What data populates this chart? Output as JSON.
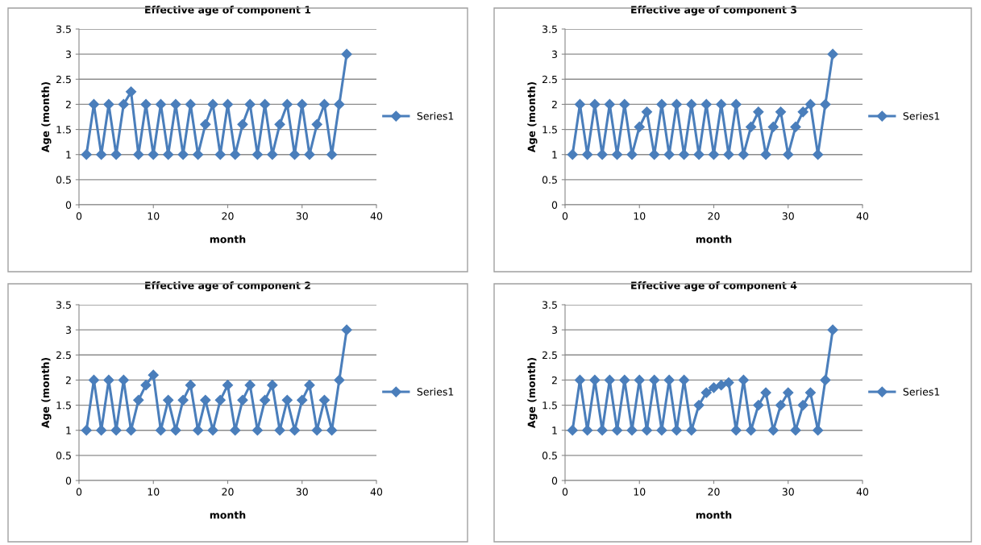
{
  "chart_data": [
    {
      "type": "line",
      "title": "Effective age of component 1",
      "xlabel": "month",
      "ylabel": "Age (month)",
      "xlim": [
        0,
        40
      ],
      "xticks": [
        0,
        10,
        20,
        30,
        40
      ],
      "ylim": [
        0,
        3.5
      ],
      "yticks": [
        0,
        0.5,
        1,
        1.5,
        2,
        2.5,
        3,
        3.5
      ],
      "grid": "y",
      "legend": "right",
      "marker": "diamond",
      "x": [
        1,
        2,
        3,
        4,
        5,
        6,
        7,
        8,
        9,
        10,
        11,
        12,
        13,
        14,
        15,
        16,
        17,
        18,
        19,
        20,
        21,
        22,
        23,
        24,
        25,
        26,
        27,
        28,
        29,
        30,
        31,
        32,
        33,
        34,
        35,
        36
      ],
      "series": [
        {
          "name": "Series1",
          "color": "#4a7ebb",
          "values": [
            1,
            2,
            1,
            2,
            1,
            2,
            2.25,
            1,
            2,
            1,
            2,
            1,
            2,
            1,
            2,
            1,
            1.6,
            2,
            1,
            2,
            1,
            1.6,
            2,
            1,
            2,
            1,
            1.6,
            2,
            1,
            2,
            1,
            1.6,
            2,
            1,
            2,
            3
          ]
        }
      ]
    },
    {
      "type": "line",
      "title": "Effective age of component 3",
      "xlabel": "month",
      "ylabel": "Age (month)",
      "xlim": [
        0,
        40
      ],
      "xticks": [
        0,
        10,
        20,
        30,
        40
      ],
      "ylim": [
        0,
        3.5
      ],
      "yticks": [
        0,
        0.5,
        1,
        1.5,
        2,
        2.5,
        3,
        3.5
      ],
      "grid": "y",
      "legend": "right",
      "marker": "diamond",
      "x": [
        1,
        2,
        3,
        4,
        5,
        6,
        7,
        8,
        9,
        10,
        11,
        12,
        13,
        14,
        15,
        16,
        17,
        18,
        19,
        20,
        21,
        22,
        23,
        24,
        25,
        26,
        27,
        28,
        29,
        30,
        31,
        32,
        33,
        34,
        35,
        36
      ],
      "series": [
        {
          "name": "Series1",
          "color": "#4a7ebb",
          "values": [
            1,
            2,
            1,
            2,
            1,
            2,
            1,
            2,
            1,
            1.55,
            1.85,
            1,
            2,
            1,
            2,
            1,
            2,
            1,
            2,
            1,
            2,
            1,
            2,
            1,
            1.55,
            1.85,
            1,
            1.55,
            1.85,
            1,
            1.55,
            1.85,
            2,
            1,
            2,
            3
          ]
        }
      ]
    },
    {
      "type": "line",
      "title": "Effective age of component 2",
      "xlabel": "month",
      "ylabel": "Age (month)",
      "xlim": [
        0,
        40
      ],
      "xticks": [
        0,
        10,
        20,
        30,
        40
      ],
      "ylim": [
        0,
        3.5
      ],
      "yticks": [
        0,
        0.5,
        1,
        1.5,
        2,
        2.5,
        3,
        3.5
      ],
      "grid": "y",
      "legend": "right",
      "marker": "diamond",
      "x": [
        1,
        2,
        3,
        4,
        5,
        6,
        7,
        8,
        9,
        10,
        11,
        12,
        13,
        14,
        15,
        16,
        17,
        18,
        19,
        20,
        21,
        22,
        23,
        24,
        25,
        26,
        27,
        28,
        29,
        30,
        31,
        32,
        33,
        34,
        35,
        36
      ],
      "series": [
        {
          "name": "Series1",
          "color": "#4a7ebb",
          "values": [
            1,
            2,
            1,
            2,
            1,
            2,
            1,
            1.6,
            1.9,
            2.1,
            1,
            1.6,
            1,
            1.6,
            1.9,
            1,
            1.6,
            1,
            1.6,
            1.9,
            1,
            1.6,
            1.9,
            1,
            1.6,
            1.9,
            1,
            1.6,
            1,
            1.6,
            1.9,
            1,
            1.6,
            1,
            2,
            3
          ]
        }
      ]
    },
    {
      "type": "line",
      "title": "Effective age of component 4",
      "xlabel": "month",
      "ylabel": "Age (month)",
      "xlim": [
        0,
        40
      ],
      "xticks": [
        0,
        10,
        20,
        30,
        40
      ],
      "ylim": [
        0,
        3.5
      ],
      "yticks": [
        0,
        0.5,
        1,
        1.5,
        2,
        2.5,
        3,
        3.5
      ],
      "grid": "y",
      "legend": "right",
      "marker": "diamond",
      "x": [
        1,
        2,
        3,
        4,
        5,
        6,
        7,
        8,
        9,
        10,
        11,
        12,
        13,
        14,
        15,
        16,
        17,
        18,
        19,
        20,
        21,
        22,
        23,
        24,
        25,
        26,
        27,
        28,
        29,
        30,
        31,
        32,
        33,
        34,
        35,
        36
      ],
      "series": [
        {
          "name": "Series1",
          "color": "#4a7ebb",
          "values": [
            1,
            2,
            1,
            2,
            1,
            2,
            1,
            2,
            1,
            2,
            1,
            2,
            1,
            2,
            1,
            2,
            1,
            1.5,
            1.75,
            1.85,
            1.9,
            1.95,
            1,
            2,
            1,
            1.5,
            1.75,
            1,
            1.5,
            1.75,
            1,
            1.5,
            1.75,
            1,
            2,
            3
          ]
        }
      ]
    }
  ]
}
